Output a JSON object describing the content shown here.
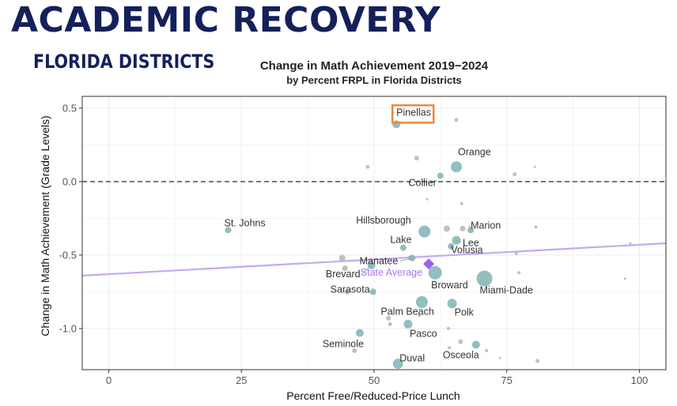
{
  "header": {
    "title": "ACADEMIC RECOVERY",
    "subtitle": "FLORIDA DISTRICTS"
  },
  "chart_data": {
    "type": "scatter",
    "title": "Change in Math Achievement 2019−2024",
    "subtitle": "by Percent FRPL in Florida Districts",
    "xlabel": "Percent Free/Reduced-Price Lunch",
    "ylabel": "Change in Math Achievement (Grade Levels)",
    "xlim": [
      -5,
      105
    ],
    "ylim": [
      -1.28,
      0.58
    ],
    "xticks": [
      0,
      25,
      50,
      75,
      100
    ],
    "xtick_labels": [
      "0",
      "25",
      "50",
      "75",
      "100"
    ],
    "yticks": [
      0.5,
      0.0,
      -0.5,
      -1.0
    ],
    "ytick_labels": [
      "0.5",
      "0.0",
      "-0.5",
      "-1.0"
    ],
    "zero_line": 0.0,
    "trend_line": {
      "x": [
        -5,
        105
      ],
      "y": [
        -0.64,
        -0.42
      ],
      "color": "#c6a8f2"
    },
    "state_average": {
      "label": "State Average",
      "x": 60.3,
      "y": -0.56,
      "color": "#9b62f0"
    },
    "highlight": {
      "label": "Pinellas",
      "color": "#e98a3c"
    },
    "labeled_points": [
      {
        "label": "Pinellas",
        "x": 54.2,
        "y": 0.39,
        "size": 5
      },
      {
        "label": "Orange",
        "x": 65.5,
        "y": 0.1,
        "size": 7
      },
      {
        "label": "Collier",
        "x": 62.5,
        "y": 0.04,
        "size": 4
      },
      {
        "label": "St. Johns",
        "x": 22.5,
        "y": -0.33,
        "size": 4
      },
      {
        "label": "Hillsborough",
        "x": 59.5,
        "y": -0.34,
        "size": 7.5
      },
      {
        "label": "Marion",
        "x": 68.2,
        "y": -0.33,
        "size": 4
      },
      {
        "label": "Lee",
        "x": 65.5,
        "y": -0.4,
        "size": 5.5
      },
      {
        "label": "Lake",
        "x": 55.5,
        "y": -0.45,
        "size": 4
      },
      {
        "label": "Volusia",
        "x": 64.5,
        "y": -0.44,
        "size": 4
      },
      {
        "label": "Manatee",
        "x": 57.2,
        "y": -0.52,
        "size": 4
      },
      {
        "label": "Brevard",
        "x": 49.5,
        "y": -0.57,
        "size": 5
      },
      {
        "label": "Broward",
        "x": 61.5,
        "y": -0.62,
        "size": 8.5
      },
      {
        "label": "Miami-Dade",
        "x": 70.8,
        "y": -0.66,
        "size": 10
      },
      {
        "label": "Sarasota",
        "x": 49.8,
        "y": -0.75,
        "size": 4
      },
      {
        "label": "Palm Beach",
        "x": 59,
        "y": -0.82,
        "size": 7.5
      },
      {
        "label": "Polk",
        "x": 64.7,
        "y": -0.83,
        "size": 6
      },
      {
        "label": "Pasco",
        "x": 56.4,
        "y": -0.97,
        "size": 5.5
      },
      {
        "label": "Seminole",
        "x": 47.3,
        "y": -1.03,
        "size": 5
      },
      {
        "label": "Osceola",
        "x": 69.2,
        "y": -1.11,
        "size": 5
      },
      {
        "label": "Duval",
        "x": 54.5,
        "y": -1.24,
        "size": 6.5
      }
    ],
    "other_points": [
      {
        "x": 65.5,
        "y": 0.42,
        "size": 2.5
      },
      {
        "x": 53.5,
        "y": 0.47,
        "size": 2
      },
      {
        "x": 48.8,
        "y": 0.1,
        "size": 2.5
      },
      {
        "x": 58,
        "y": 0.16,
        "size": 3
      },
      {
        "x": 76.5,
        "y": 0.05,
        "size": 2.5
      },
      {
        "x": 80.3,
        "y": 0.1,
        "size": 1.5
      },
      {
        "x": 66.5,
        "y": -0.15,
        "size": 2
      },
      {
        "x": 60,
        "y": -0.12,
        "size": 1.5
      },
      {
        "x": 63.7,
        "y": -0.32,
        "size": 4
      },
      {
        "x": 66.7,
        "y": -0.32,
        "size": 3.5
      },
      {
        "x": 80.5,
        "y": -0.31,
        "size": 2
      },
      {
        "x": 76.8,
        "y": -0.49,
        "size": 2
      },
      {
        "x": 98.3,
        "y": -0.42,
        "size": 1.5
      },
      {
        "x": 44,
        "y": -0.52,
        "size": 4
      },
      {
        "x": 44.5,
        "y": -0.59,
        "size": 3.5
      },
      {
        "x": 56.7,
        "y": -0.52,
        "size": 3
      },
      {
        "x": 77.3,
        "y": -0.62,
        "size": 2
      },
      {
        "x": 97.3,
        "y": -0.66,
        "size": 1.5
      },
      {
        "x": 44.9,
        "y": -0.75,
        "size": 3.5
      },
      {
        "x": 52.7,
        "y": -0.93,
        "size": 3
      },
      {
        "x": 53,
        "y": -0.97,
        "size": 2.5
      },
      {
        "x": 58.5,
        "y": -0.91,
        "size": 2
      },
      {
        "x": 64,
        "y": -1.0,
        "size": 2
      },
      {
        "x": 66.3,
        "y": -1.09,
        "size": 3
      },
      {
        "x": 64.2,
        "y": -1.13,
        "size": 2
      },
      {
        "x": 71.2,
        "y": -1.15,
        "size": 2
      },
      {
        "x": 73.7,
        "y": -1.2,
        "size": 1.5
      },
      {
        "x": 46.3,
        "y": -1.15,
        "size": 3
      },
      {
        "x": 80.8,
        "y": -1.22,
        "size": 2.5
      }
    ],
    "colors": {
      "labeled": "#7fb3b5",
      "other": "#b5b5b5",
      "zero_line": "#5a5570",
      "grid": "#ececec",
      "panel_border": "#333333"
    }
  }
}
